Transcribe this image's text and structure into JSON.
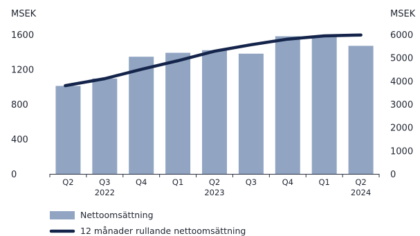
{
  "chart_data": {
    "type": "bar",
    "categories": [
      "Q2",
      "Q3",
      "Q4",
      "Q1",
      "Q2",
      "Q3",
      "Q4",
      "Q1",
      "Q2"
    ],
    "year_labels": [
      {
        "label": "2022",
        "under_index": 1
      },
      {
        "label": "2023",
        "under_index": 4
      },
      {
        "label": "2024",
        "under_index": 8
      }
    ],
    "left_axis": {
      "unit": "MSEK",
      "ticks": [
        0,
        400,
        800,
        1200,
        1600
      ],
      "ylim": [
        0,
        1600
      ]
    },
    "right_axis": {
      "unit": "MSEK",
      "ticks": [
        0,
        1000,
        2000,
        3000,
        4000,
        5000,
        6000
      ],
      "ylim": [
        0,
        6000
      ]
    },
    "series": [
      {
        "name": "Nettoomsättning",
        "type": "bar",
        "axis": "left",
        "color": "#91a5c3",
        "values": [
          1010,
          1095,
          1345,
          1390,
          1420,
          1380,
          1580,
          1580,
          1470
        ]
      },
      {
        "name": "12 månader rullande nettoomsättning",
        "type": "line",
        "axis": "right",
        "color": "#14244a",
        "values": [
          3800,
          4100,
          4500,
          4870,
          5280,
          5560,
          5800,
          5940,
          5980
        ]
      }
    ],
    "grid": false,
    "legend": "bottom-left"
  }
}
